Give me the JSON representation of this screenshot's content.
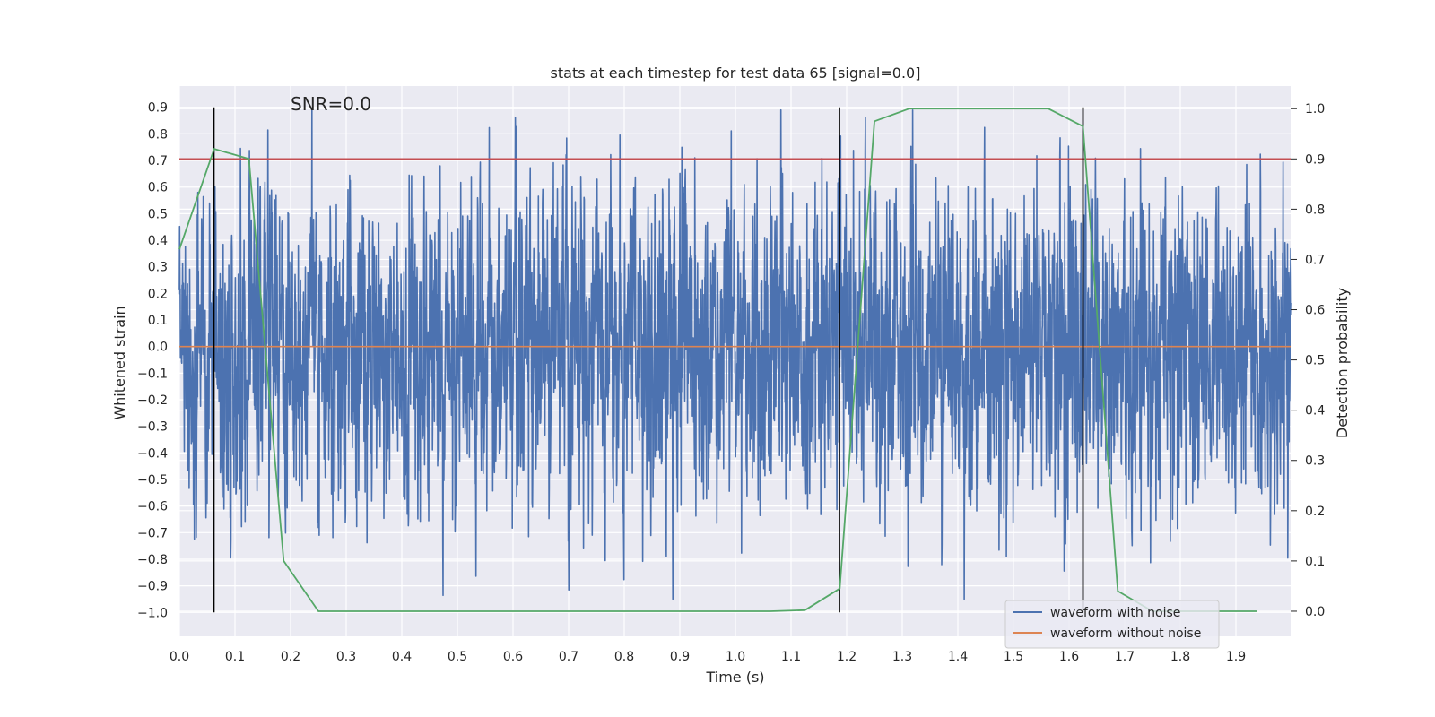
{
  "chart_data": {
    "type": "line",
    "title": "stats at each timestep for test data 65 [signal=0.0]",
    "annotation": "SNR=0.0",
    "xlabel": "Time (s)",
    "ylabel_left": "Whitened strain",
    "ylabel_right": "Detection probability",
    "xlim": [
      0.0,
      2.0
    ],
    "ylim_left": [
      -1.09,
      0.98
    ],
    "ylim_right": [
      -0.05,
      1.045
    ],
    "x_ticks": [
      "0.0",
      "0.1",
      "0.2",
      "0.3",
      "0.4",
      "0.5",
      "0.6",
      "0.7",
      "0.8",
      "0.9",
      "1.0",
      "1.1",
      "1.2",
      "1.3",
      "1.4",
      "1.5",
      "1.6",
      "1.7",
      "1.8",
      "1.9"
    ],
    "y_left_ticks": [
      "0.9",
      "0.8",
      "0.7",
      "0.6",
      "0.5",
      "0.4",
      "0.3",
      "0.2",
      "0.1",
      "0.0",
      "−0.1",
      "−0.2",
      "−0.3",
      "−0.4",
      "−0.5",
      "−0.6",
      "−0.7",
      "−0.8",
      "−0.9",
      "−1.0"
    ],
    "y_right_ticks": [
      "1.0",
      "0.9",
      "0.8",
      "0.7",
      "0.6",
      "0.5",
      "0.4",
      "0.3",
      "0.2",
      "0.1",
      "0.0"
    ],
    "threshold": {
      "axis": "right",
      "value": 0.9,
      "color": "#c44e52"
    },
    "vertical_markers": {
      "x": [
        0.062,
        1.187,
        1.625
      ],
      "ymin": -1.0,
      "ymax": 0.9,
      "color": "#000000"
    },
    "series": [
      {
        "name": "waveform with noise",
        "axis": "left",
        "color": "#4c72b0",
        "noise": {
          "n_samples": 4096,
          "std": 0.3,
          "seed": 65
        }
      },
      {
        "name": "waveform without noise",
        "axis": "left",
        "color": "#dd8452",
        "x": [
          0.0,
          2.0
        ],
        "y": [
          0.0,
          0.0
        ]
      },
      {
        "name": "detection probability",
        "axis": "right",
        "color": "#55a868",
        "x": [
          0.0,
          0.0625,
          0.125,
          0.1875,
          0.25,
          0.3125,
          1.0625,
          1.125,
          1.1875,
          1.25,
          1.3125,
          1.375,
          1.5625,
          1.625,
          1.6875,
          1.75,
          1.8125,
          1.9375
        ],
        "y": [
          0.72,
          0.92,
          0.9,
          0.1,
          0.0,
          0.0,
          0.0,
          0.002,
          0.045,
          0.975,
          1.0,
          1.0,
          1.0,
          0.965,
          0.04,
          0.0,
          0.0,
          0.0
        ]
      }
    ],
    "legend": [
      "waveform with noise",
      "waveform without noise"
    ],
    "legend_position": "lower right",
    "grid": true
  }
}
